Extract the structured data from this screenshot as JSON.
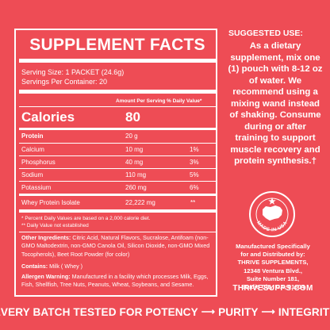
{
  "facts": {
    "title": "SUPPLEMENT FACTS",
    "serving_size": "Serving Size: 1 PACKET (24.6g)",
    "servings_per_container": "Servings Per Container: 20",
    "col_amount": "Amount Per Serving",
    "col_dv": "% Daily Value*",
    "calories_label": "Calories",
    "calories_value": "80",
    "rows": [
      {
        "name": "Protein",
        "amount": "20 g",
        "dv": ""
      },
      {
        "name": "Calcium",
        "amount": "10 mg",
        "dv": "1%"
      },
      {
        "name": "Phosphorus",
        "amount": "40 mg",
        "dv": "3%"
      },
      {
        "name": "Sodium",
        "amount": "110 mg",
        "dv": "5%"
      },
      {
        "name": "Potassium",
        "amount": "260 mg",
        "dv": "6%"
      }
    ],
    "whey_name": "Whey Protein Isolate",
    "whey_amount": "22,222 mg",
    "whey_dv": "**",
    "footnote_1": "* Percent Daily Values are based on a 2,000 calorie diet.",
    "footnote_2": "** Daily Value not established",
    "other_ingredients_label": "Other Ingredients:",
    "other_ingredients_text": " Citric Acid, Natural Flavors, Sucralose, Antifoam (non-GMO Maltodextrin, non-GMO Canola Oil, Silicon Dioxide, non-GMO Mixed Tocopherols), Beet Root Powder (for color)",
    "contains_label": "Contains:",
    "contains_text": " Milk ( Whey )",
    "allergen_label": "Allergen Warning:",
    "allergen_text": " Manufactured in a facility which processes Milk, Eggs, Fish, Shellfish, Tree Nuts, Peanuts, Wheat, Soybeans, and Sesame."
  },
  "suggested": {
    "title": "SUGGESTED USE:",
    "text": "As a dietary supplement, mix one (1) pouch with 8-12 oz of water. We recommend using a mixing wand instead of shaking. Consume during or after training to support muscle recovery and protein synthesis.†"
  },
  "badge": {
    "text": "MADE IN USA",
    "icon": "made-in-usa-badge-icon"
  },
  "manufacturer": {
    "line1": "Manufactured Specifically",
    "line2": "for and Distributed by:",
    "line3": "THRIVE SUPPLEMENTS,",
    "line4": "12348 Ventura Blvd.,",
    "line5": "Suite Number 181,",
    "line6": "Studio City, CA, 91604",
    "website": "THRIVESUPPS.COM"
  },
  "banner": {
    "part1": "EVERY BATCH TESTED FOR POTENCY",
    "part2": "PURITY",
    "part3": "INTEGRITY"
  },
  "colors": {
    "background": "#ee4c55",
    "text": "#ffffff"
  }
}
